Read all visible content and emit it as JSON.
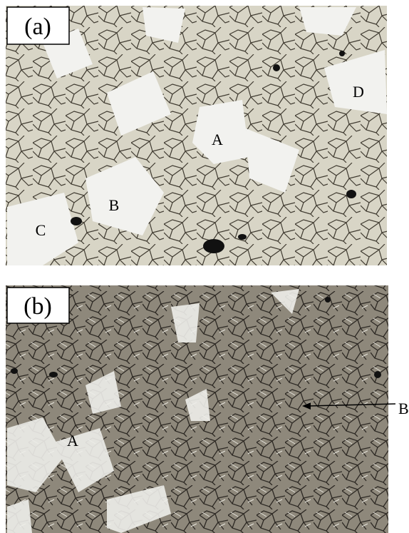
{
  "panels": [
    {
      "label": "(a)",
      "annotations": [
        "D",
        "A",
        "B",
        "C"
      ]
    },
    {
      "label": "(b)",
      "annotations": [
        "B",
        "A"
      ]
    }
  ]
}
